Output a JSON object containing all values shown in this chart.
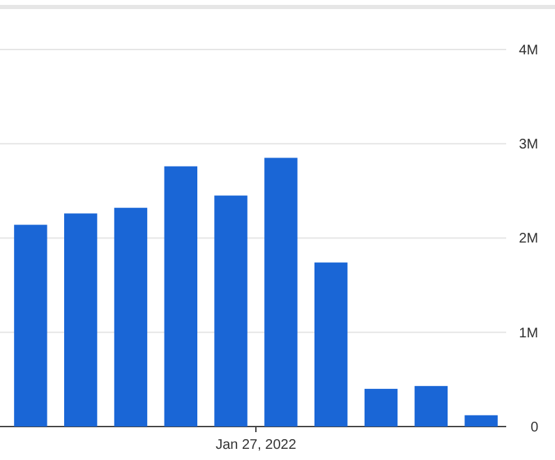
{
  "chart_data": {
    "type": "bar",
    "categories": [
      null,
      null,
      null,
      null,
      null,
      null,
      null,
      null,
      null,
      null
    ],
    "values": [
      2140000,
      2260000,
      2320000,
      2760000,
      2450000,
      2850000,
      1740000,
      400000,
      430000,
      120000
    ],
    "color": "#1a66d6",
    "annotations": [
      "Jan 27, 2022"
    ],
    "ylim": [
      0,
      4450000
    ],
    "yticks": [
      {
        "value": 0,
        "label": "0"
      },
      {
        "value": 1000000,
        "label": "1M"
      },
      {
        "value": 2000000,
        "label": "2M"
      },
      {
        "value": 3000000,
        "label": "3M"
      },
      {
        "value": 4000000,
        "label": "4M"
      }
    ],
    "grid": "y"
  }
}
